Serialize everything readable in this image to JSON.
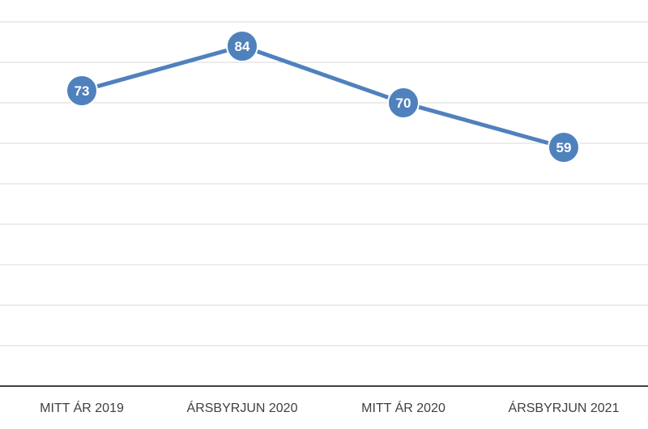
{
  "chart_data": {
    "type": "line",
    "categories": [
      "MITT ÁR 2019",
      "ÁRSBYRJUN 2020",
      "MITT ÁR 2020",
      "ÁRSBYRJUN 2021"
    ],
    "series": [
      {
        "values": [
          73,
          84,
          70,
          59
        ],
        "color": "#4f81bd"
      }
    ],
    "ylim": [
      0,
      90
    ],
    "grid": true,
    "y_tick_labels_shown": false,
    "data_labels": true,
    "legend": "none",
    "title": "",
    "xlabel": "",
    "ylabel": ""
  }
}
